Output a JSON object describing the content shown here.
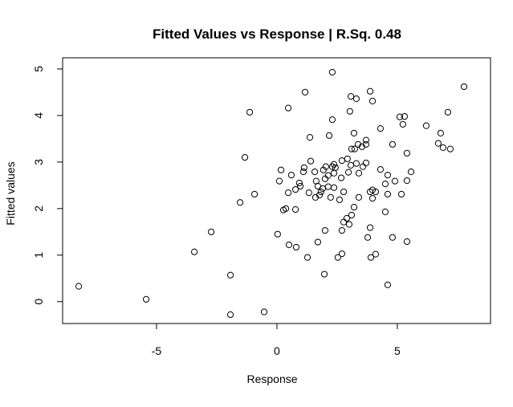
{
  "chart_data": {
    "type": "scatter",
    "title": "Fitted Values vs Response | R.Sq. 0.48",
    "x_label": "Response",
    "y_label": "Fitted values",
    "xlim": [
      -8.9,
      8.87
    ],
    "ylim": [
      -0.47,
      5.24
    ],
    "xticks": [
      -5,
      0,
      5
    ],
    "yticks": [
      0,
      1,
      2,
      3,
      4,
      5
    ],
    "grid": false,
    "color": "#000000",
    "x": [
      -8.23,
      -5.43,
      -3.43,
      -2.73,
      -1.53,
      -0.93,
      -1.33,
      -1.13,
      -1.93,
      -1.93,
      -0.53,
      0.03,
      0.5,
      0.8,
      1.27,
      1.97,
      1.7,
      2.0,
      2.53,
      2.7,
      0.47,
      1.17,
      2.3,
      1.37,
      2.3,
      2.17,
      3.07,
      3.3,
      3.03,
      3.87,
      3.97,
      3.2,
      3.37,
      3.1,
      3.23,
      3.53,
      3.7,
      3.7,
      4.3,
      5.1,
      5.3,
      5.23,
      6.2,
      7.77,
      7.1,
      6.8,
      6.7,
      6.9,
      7.2,
      5.4,
      4.8,
      5.57,
      5.4,
      4.9,
      4.6,
      4.5,
      5.17,
      4.6,
      4.3,
      3.97,
      3.87,
      4.1,
      3.97,
      4.5,
      3.2,
      3.1,
      2.9,
      3.0,
      2.77,
      2.7,
      3.87,
      3.77,
      4.8,
      5.4,
      4.1,
      3.9,
      4.6,
      3.4,
      2.77,
      2.37,
      2.13,
      1.9,
      1.77,
      1.83,
      1.7,
      1.63,
      2.0,
      2.13,
      1.93,
      2.37,
      2.67,
      2.97,
      3.07,
      3.3,
      3.4,
      3.57,
      3.7,
      2.93,
      2.37,
      2.43,
      2.3,
      2.7,
      2.03,
      1.57,
      1.1,
      1.13,
      1.4,
      0.6,
      0.17,
      0.1,
      0.93,
      0.97,
      0.77,
      0.47,
      1.33,
      1.6,
      2.23,
      0.27,
      0.37,
      0.77,
      2.6
    ],
    "y": [
      0.33,
      0.05,
      1.07,
      1.5,
      2.13,
      2.31,
      3.1,
      4.07,
      0.57,
      -0.28,
      -0.22,
      1.45,
      1.22,
      1.17,
      0.95,
      0.59,
      1.28,
      1.53,
      0.95,
      1.03,
      4.16,
      4.5,
      4.93,
      3.53,
      3.91,
      3.57,
      4.41,
      4.36,
      4.09,
      4.52,
      4.31,
      3.62,
      3.38,
      3.28,
      3.28,
      3.33,
      3.47,
      3.38,
      3.72,
      3.97,
      3.98,
      3.81,
      3.78,
      4.62,
      4.07,
      3.62,
      3.4,
      3.31,
      3.28,
      3.19,
      3.38,
      2.79,
      2.6,
      2.59,
      2.72,
      2.53,
      2.31,
      2.31,
      2.84,
      2.4,
      2.36,
      2.36,
      2.22,
      1.93,
      2.03,
      1.86,
      1.79,
      1.66,
      1.71,
      1.53,
      1.59,
      1.38,
      1.38,
      1.29,
      1.02,
      0.95,
      0.36,
      2.24,
      2.36,
      2.45,
      2.47,
      2.43,
      2.29,
      2.36,
      2.48,
      2.59,
      2.64,
      2.71,
      2.83,
      2.76,
      2.66,
      2.78,
      2.93,
      2.97,
      2.76,
      2.9,
      2.98,
      3.07,
      2.95,
      2.88,
      2.9,
      3.03,
      2.9,
      2.79,
      2.79,
      2.88,
      3.02,
      2.72,
      2.83,
      2.59,
      2.55,
      2.48,
      2.41,
      2.34,
      2.34,
      2.24,
      2.24,
      1.97,
      2.0,
      1.98,
      2.19
    ]
  }
}
